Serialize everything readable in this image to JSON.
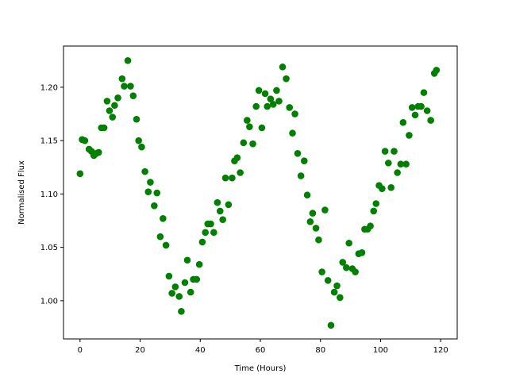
{
  "chart_data": {
    "type": "scatter",
    "title": "",
    "xlabel": "Time (Hours)",
    "ylabel": "Normalised Flux",
    "xlim": [
      -5.5,
      125.5
    ],
    "ylim": [
      0.9642,
      1.2386
    ],
    "xticks": [
      0,
      20,
      40,
      60,
      80,
      100,
      120
    ],
    "xtick_labels": [
      "0",
      "20",
      "40",
      "60",
      "80",
      "100",
      "120"
    ],
    "yticks": [
      1.0,
      1.05,
      1.1,
      1.15,
      1.2
    ],
    "ytick_labels": [
      "1.00",
      "1.05",
      "1.10",
      "1.15",
      "1.20"
    ],
    "grid": false,
    "legend": "none",
    "colors": {
      "marker": "#008000",
      "axes": "#000000",
      "background": "#ffffff"
    },
    "series": [
      {
        "points": [
          [
            0.0,
            1.119
          ],
          [
            0.7,
            1.151
          ],
          [
            1.6,
            1.15
          ],
          [
            3.0,
            1.142
          ],
          [
            3.8,
            1.14
          ],
          [
            4.6,
            1.136
          ],
          [
            5.4,
            1.138
          ],
          [
            6.2,
            1.139
          ],
          [
            7.1,
            1.162
          ],
          [
            8.0,
            1.162
          ],
          [
            9.0,
            1.187
          ],
          [
            9.8,
            1.178
          ],
          [
            10.8,
            1.172
          ],
          [
            11.5,
            1.183
          ],
          [
            12.6,
            1.19
          ],
          [
            14.0,
            1.208
          ],
          [
            14.7,
            1.201
          ],
          [
            15.9,
            1.225
          ],
          [
            16.8,
            1.201
          ],
          [
            17.7,
            1.192
          ],
          [
            18.8,
            1.17
          ],
          [
            19.5,
            1.15
          ],
          [
            20.5,
            1.144
          ],
          [
            21.6,
            1.121
          ],
          [
            22.7,
            1.102
          ],
          [
            23.4,
            1.111
          ],
          [
            24.7,
            1.089
          ],
          [
            25.6,
            1.101
          ],
          [
            26.7,
            1.06
          ],
          [
            27.6,
            1.077
          ],
          [
            28.6,
            1.052
          ],
          [
            29.6,
            1.023
          ],
          [
            30.6,
            1.007
          ],
          [
            31.7,
            1.013
          ],
          [
            33.0,
            1.004
          ],
          [
            33.7,
            0.99
          ],
          [
            34.9,
            1.017
          ],
          [
            35.7,
            1.038
          ],
          [
            36.8,
            1.008
          ],
          [
            37.7,
            1.02
          ],
          [
            38.8,
            1.02
          ],
          [
            39.7,
            1.034
          ],
          [
            40.7,
            1.055
          ],
          [
            41.7,
            1.064
          ],
          [
            42.5,
            1.072
          ],
          [
            43.5,
            1.072
          ],
          [
            44.5,
            1.064
          ],
          [
            45.7,
            1.092
          ],
          [
            46.6,
            1.084
          ],
          [
            47.5,
            1.076
          ],
          [
            48.4,
            1.115
          ],
          [
            49.4,
            1.09
          ],
          [
            50.6,
            1.115
          ],
          [
            51.4,
            1.131
          ],
          [
            52.3,
            1.134
          ],
          [
            53.3,
            1.12
          ],
          [
            54.4,
            1.148
          ],
          [
            55.6,
            1.169
          ],
          [
            56.4,
            1.163
          ],
          [
            57.5,
            1.147
          ],
          [
            58.6,
            1.182
          ],
          [
            59.5,
            1.197
          ],
          [
            60.5,
            1.162
          ],
          [
            61.6,
            1.194
          ],
          [
            62.3,
            1.182
          ],
          [
            63.4,
            1.189
          ],
          [
            64.3,
            1.184
          ],
          [
            65.4,
            1.197
          ],
          [
            66.2,
            1.187
          ],
          [
            67.4,
            1.219
          ],
          [
            68.6,
            1.208
          ],
          [
            69.7,
            1.181
          ],
          [
            70.7,
            1.157
          ],
          [
            71.5,
            1.175
          ],
          [
            72.4,
            1.138
          ],
          [
            73.5,
            1.117
          ],
          [
            74.6,
            1.131
          ],
          [
            75.6,
            1.099
          ],
          [
            76.6,
            1.074
          ],
          [
            77.4,
            1.082
          ],
          [
            78.5,
            1.068
          ],
          [
            79.4,
            1.057
          ],
          [
            80.5,
            1.027
          ],
          [
            81.5,
            1.085
          ],
          [
            82.5,
            1.019
          ],
          [
            83.5,
            0.977
          ],
          [
            84.6,
            1.008
          ],
          [
            85.5,
            1.014
          ],
          [
            86.5,
            1.003
          ],
          [
            87.4,
            1.036
          ],
          [
            88.6,
            1.031
          ],
          [
            89.5,
            1.054
          ],
          [
            90.6,
            1.03
          ],
          [
            91.6,
            1.027
          ],
          [
            92.7,
            1.044
          ],
          [
            93.8,
            1.045
          ],
          [
            94.7,
            1.067
          ],
          [
            95.7,
            1.067
          ],
          [
            96.6,
            1.07
          ],
          [
            97.7,
            1.084
          ],
          [
            98.5,
            1.091
          ],
          [
            99.5,
            1.108
          ],
          [
            100.5,
            1.105
          ],
          [
            101.5,
            1.14
          ],
          [
            102.6,
            1.129
          ],
          [
            103.5,
            1.106
          ],
          [
            104.5,
            1.14
          ],
          [
            105.6,
            1.12
          ],
          [
            106.7,
            1.128
          ],
          [
            107.5,
            1.167
          ],
          [
            108.5,
            1.128
          ],
          [
            109.5,
            1.155
          ],
          [
            110.5,
            1.181
          ],
          [
            111.5,
            1.174
          ],
          [
            112.5,
            1.182
          ],
          [
            113.5,
            1.182
          ],
          [
            114.4,
            1.195
          ],
          [
            115.5,
            1.178
          ],
          [
            116.7,
            1.169
          ],
          [
            117.9,
            1.213
          ],
          [
            118.6,
            1.216
          ]
        ]
      }
    ]
  }
}
